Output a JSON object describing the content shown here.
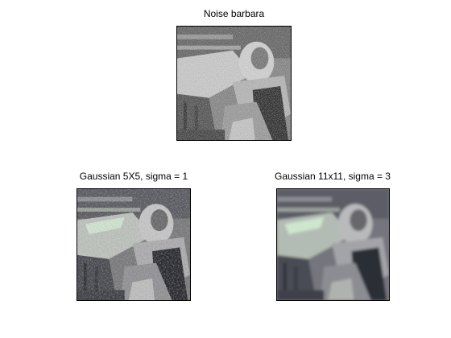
{
  "figures": [
    {
      "title": "Noise barbara"
    },
    {
      "title": "Gaussian 5X5, sigma = 1"
    },
    {
      "title": "Gaussian 11x11, sigma = 3"
    }
  ]
}
